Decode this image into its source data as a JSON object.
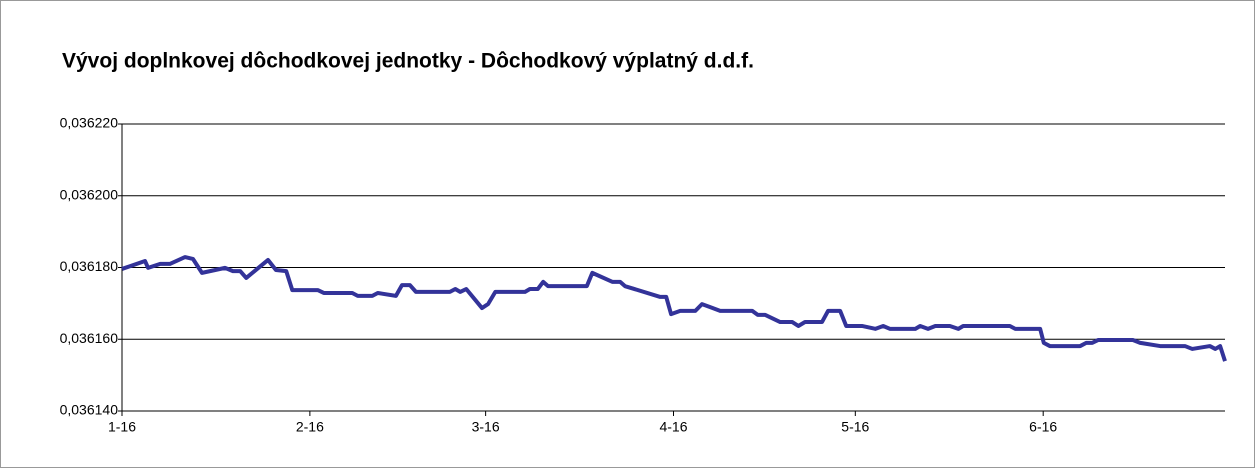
{
  "chart_data": {
    "type": "line",
    "title": "Vývoj doplnkovej dôchodkovej jednotky -  Dôchodkový výplatný d.d.f.",
    "x": [
      0,
      3.8,
      4.3,
      6.3,
      7.9,
      10.4,
      11.7,
      13.2,
      17.0,
      18.3,
      19.5,
      20.5,
      24.1,
      25.4,
      27.1,
      28.1,
      32.3,
      33.3,
      38.0,
      38.9,
      41.3,
      42.2,
      45.2,
      46.2,
      47.5,
      48.5,
      54.1,
      55.0,
      55.8,
      56.8,
      59.4,
      60.4,
      61.6,
      66.5,
      67.3,
      68.6,
      69.5,
      70.3,
      76.7,
      77.6,
      80.9,
      82.2,
      83.0,
      88.8,
      89.8,
      90.6,
      92.1,
      94.6,
      95.7,
      97.0,
      98.7,
      104.0,
      104.9,
      106.1,
      108.6,
      110.6,
      111.6,
      112.7,
      115.5,
      116.5,
      118.5,
      119.5,
      122.1,
      124.3,
      125.6,
      126.7,
      130.9,
      131.7,
      133.0,
      134.2,
      136.6,
      138.0,
      138.8,
      146.5,
      147.4,
      151.5,
      152.1,
      153.1,
      158.1,
      159.1,
      160.1,
      161.1,
      166.8,
      168.0,
      171.3,
      175.4,
      176.6,
      179.5,
      180.4,
      181.2,
      182
    ],
    "series": [
      {
        "color": "#333399",
        "values": [
          0.0361796,
          0.0361818,
          0.0361799,
          0.036181,
          0.036181,
          0.0361829,
          0.0361824,
          0.0361785,
          0.0361799,
          0.036179,
          0.036179,
          0.0361771,
          0.0361821,
          0.0361793,
          0.036179,
          0.0361737,
          0.0361737,
          0.0361729,
          0.0361729,
          0.0361721,
          0.0361721,
          0.0361729,
          0.0361721,
          0.0361751,
          0.0361751,
          0.0361732,
          0.0361732,
          0.036174,
          0.0361732,
          0.036174,
          0.0361687,
          0.0361698,
          0.0361732,
          0.0361732,
          0.036174,
          0.036174,
          0.036176,
          0.0361748,
          0.0361748,
          0.0361785,
          0.036176,
          0.036176,
          0.0361748,
          0.0361718,
          0.0361718,
          0.036167,
          0.0361679,
          0.0361679,
          0.0361698,
          0.036169,
          0.0361679,
          0.0361679,
          0.0361668,
          0.0361668,
          0.0361648,
          0.0361648,
          0.0361637,
          0.0361648,
          0.0361648,
          0.0361679,
          0.0361679,
          0.0361637,
          0.0361637,
          0.0361629,
          0.0361637,
          0.0361629,
          0.0361629,
          0.0361637,
          0.0361629,
          0.0361637,
          0.0361637,
          0.0361629,
          0.0361637,
          0.0361637,
          0.0361629,
          0.0361629,
          0.036159,
          0.0361581,
          0.0361581,
          0.036159,
          0.036159,
          0.0361598,
          0.0361598,
          0.036159,
          0.0361581,
          0.0361581,
          0.0361573,
          0.0361581,
          0.0361573,
          0.0361581,
          0.0361539
        ]
      }
    ],
    "xlim": [
      0,
      182
    ],
    "xticks": [
      {
        "value": 0,
        "label": "1-16"
      },
      {
        "value": 31,
        "label": "2-16"
      },
      {
        "value": 60,
        "label": "3-16"
      },
      {
        "value": 91,
        "label": "4-16"
      },
      {
        "value": 121,
        "label": "5-16"
      },
      {
        "value": 152,
        "label": "6-16"
      }
    ],
    "ylim": [
      0.03614,
      0.03622
    ],
    "yticks": [
      {
        "value": 0.03614,
        "label": "0,036140"
      },
      {
        "value": 0.03616,
        "label": "0,036160"
      },
      {
        "value": 0.03618,
        "label": "0,036180"
      },
      {
        "value": 0.0362,
        "label": "0,036200"
      },
      {
        "value": 0.03622,
        "label": "0,036220"
      }
    ],
    "grid": true
  }
}
